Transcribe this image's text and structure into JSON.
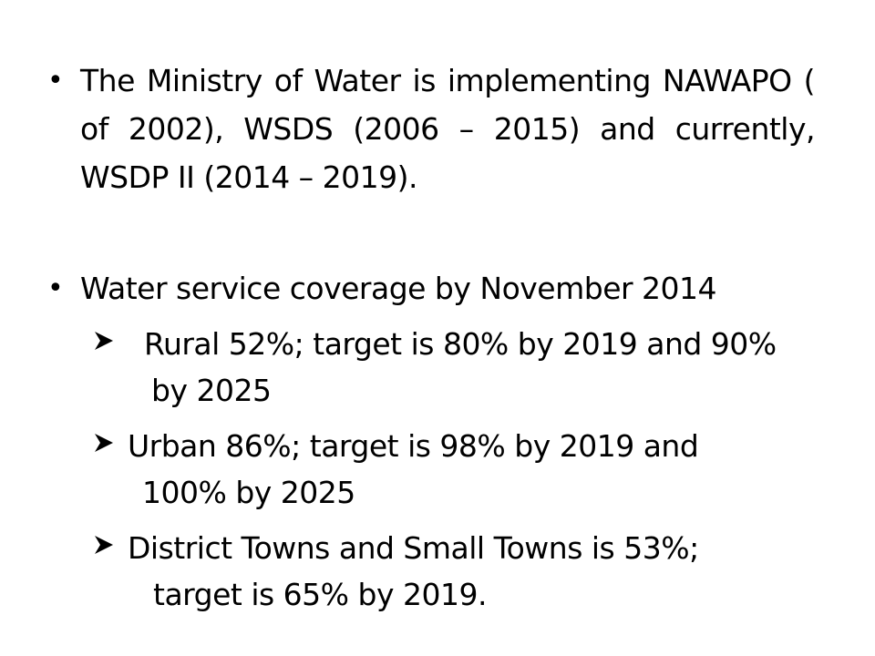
{
  "items": [
    {
      "bullet": "•",
      "text": "The Ministry of Water is implementing NAWAPO ( of 2002), WSDS (2006 – 2015) and currently, WSDP II (2014 – 2019)."
    },
    {
      "bullet": "•",
      "text": "Water service coverage by November 2014",
      "subitems": [
        {
          "line1": "Rural 52%; target is 80% by 2019 and 90%",
          "line2": "by 2025"
        },
        {
          "line1": "Urban 86%; target is 98% by 2019 and",
          "line2": "100% by 2025"
        },
        {
          "line1": "District Towns and Small Towns is 53%;",
          "line2": "target is 65% by 2019."
        }
      ]
    }
  ],
  "icons": {
    "bullet": "bullet-dot",
    "subbullet": "arrowhead-icon"
  }
}
